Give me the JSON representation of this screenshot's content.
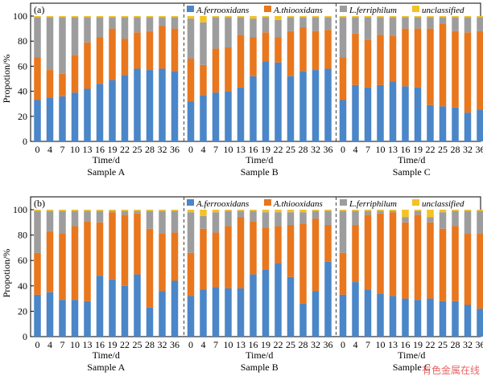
{
  "legend": [
    {
      "name": "A.ferrooxidans",
      "color": "#4a86c8"
    },
    {
      "name": "A.thiooxidans",
      "color": "#e8771e"
    },
    {
      "name": "L.ferriphilum",
      "color": "#9d9d9d"
    },
    {
      "name": "unclassified",
      "color": "#f4c224"
    }
  ],
  "watermark": "有色金属在线",
  "chart_data": [
    {
      "type": "bar",
      "stacked": true,
      "panel_label": "(a)",
      "ylabel": "Propotion/%",
      "xlabel": "Time/d",
      "ylim": [
        0,
        100
      ],
      "yticks": [
        0,
        20,
        40,
        60,
        80,
        100
      ],
      "categories": [
        "0",
        "4",
        "7",
        "10",
        "13",
        "16",
        "19",
        "22",
        "25",
        "28",
        "32",
        "36"
      ],
      "legend_position": "top",
      "groups": [
        {
          "name": "Sample A",
          "series": [
            {
              "name": "A.ferrooxidans",
              "values": [
                33,
                35,
                36,
                39,
                42,
                46,
                49,
                53,
                58,
                57,
                58,
                56
              ]
            },
            {
              "name": "A.thiooxidans",
              "values": [
                34,
                22,
                18,
                30,
                37,
                37,
                41,
                29,
                29,
                31,
                34,
                34
              ]
            },
            {
              "name": "L.ferriphilum",
              "values": [
                32,
                42,
                45,
                30,
                20,
                16,
                9,
                17,
                12,
                11,
                7,
                9
              ]
            },
            {
              "name": "unclassified",
              "values": [
                1,
                1,
                1,
                1,
                1,
                1,
                1,
                1,
                1,
                1,
                1,
                1
              ]
            }
          ]
        },
        {
          "name": "Sample B",
          "series": [
            {
              "name": "A.ferrooxidans",
              "values": [
                32,
                37,
                39,
                40,
                43,
                52,
                64,
                63,
                52,
                56,
                57,
                58
              ]
            },
            {
              "name": "A.thiooxidans",
              "values": [
                34,
                24,
                35,
                35,
                42,
                31,
                23,
                20,
                36,
                35,
                31,
                31
              ]
            },
            {
              "name": "L.ferriphilum",
              "values": [
                32,
                34,
                25,
                24,
                14,
                15,
                12,
                14,
                11,
                8,
                11,
                10
              ]
            },
            {
              "name": "unclassified",
              "values": [
                2,
                5,
                1,
                1,
                1,
                2,
                1,
                3,
                1,
                1,
                1,
                1
              ]
            }
          ]
        },
        {
          "name": "Sample C",
          "series": [
            {
              "name": "A.ferrooxidans",
              "values": [
                33,
                45,
                43,
                45,
                48,
                44,
                43,
                29,
                28,
                27,
                23,
                25
              ]
            },
            {
              "name": "A.thiooxidans",
              "values": [
                34,
                41,
                38,
                40,
                36,
                46,
                47,
                61,
                66,
                61,
                64,
                63
              ]
            },
            {
              "name": "L.ferriphilum",
              "values": [
                32,
                13,
                18,
                14,
                15,
                9,
                9,
                9,
                5,
                11,
                12,
                11
              ]
            },
            {
              "name": "unclassified",
              "values": [
                1,
                1,
                1,
                1,
                1,
                1,
                1,
                1,
                1,
                1,
                1,
                1
              ]
            }
          ]
        }
      ]
    },
    {
      "type": "bar",
      "stacked": true,
      "panel_label": "(b)",
      "ylabel": "Propotion/%",
      "xlabel": "Time/d",
      "ylim": [
        0,
        100
      ],
      "yticks": [
        0,
        20,
        40,
        60,
        80,
        100
      ],
      "categories": [
        "0",
        "4",
        "7",
        "10",
        "13",
        "16",
        "19",
        "22",
        "25",
        "28",
        "32",
        "36"
      ],
      "legend_position": "top",
      "groups": [
        {
          "name": "Sample A",
          "series": [
            {
              "name": "A.ferrooxidans",
              "values": [
                33,
                35,
                29,
                29,
                28,
                48,
                45,
                40,
                49,
                23,
                36,
                44
              ]
            },
            {
              "name": "A.thiooxidans",
              "values": [
                33,
                48,
                52,
                58,
                63,
                42,
                53,
                56,
                48,
                62,
                45,
                38
              ]
            },
            {
              "name": "L.ferriphilum",
              "values": [
                33,
                16,
                18,
                12,
                8,
                9,
                1,
                3,
                2,
                14,
                18,
                17
              ]
            },
            {
              "name": "unclassified",
              "values": [
                1,
                1,
                1,
                1,
                1,
                1,
                1,
                1,
                1,
                1,
                1,
                1
              ]
            }
          ]
        },
        {
          "name": "Sample B",
          "series": [
            {
              "name": "A.ferrooxidans",
              "values": [
                32,
                37,
                39,
                38,
                38,
                49,
                53,
                58,
                47,
                26,
                36,
                59
              ]
            },
            {
              "name": "A.thiooxidans",
              "values": [
                34,
                48,
                43,
                49,
                56,
                42,
                33,
                29,
                41,
                63,
                57,
                29
              ]
            },
            {
              "name": "L.ferriphilum",
              "values": [
                32,
                10,
                16,
                12,
                5,
                8,
                12,
                11,
                10,
                9,
                6,
                11
              ]
            },
            {
              "name": "unclassified",
              "values": [
                2,
                5,
                2,
                1,
                1,
                1,
                2,
                2,
                2,
                2,
                1,
                1
              ]
            }
          ]
        },
        {
          "name": "Sample C",
          "series": [
            {
              "name": "A.ferrooxidans",
              "values": [
                33,
                43,
                37,
                34,
                32,
                30,
                29,
                30,
                28,
                28,
                25,
                22
              ]
            },
            {
              "name": "A.thiooxidans",
              "values": [
                33,
                45,
                59,
                63,
                66,
                60,
                67,
                60,
                57,
                59,
                56,
                59
              ]
            },
            {
              "name": "L.ferriphilum",
              "values": [
                33,
                11,
                3,
                2,
                1,
                4,
                3,
                4,
                13,
                12,
                18,
                18
              ]
            },
            {
              "name": "unclassified",
              "values": [
                1,
                1,
                1,
                1,
                1,
                6,
                1,
                6,
                2,
                1,
                1,
                1
              ]
            }
          ]
        }
      ]
    }
  ]
}
